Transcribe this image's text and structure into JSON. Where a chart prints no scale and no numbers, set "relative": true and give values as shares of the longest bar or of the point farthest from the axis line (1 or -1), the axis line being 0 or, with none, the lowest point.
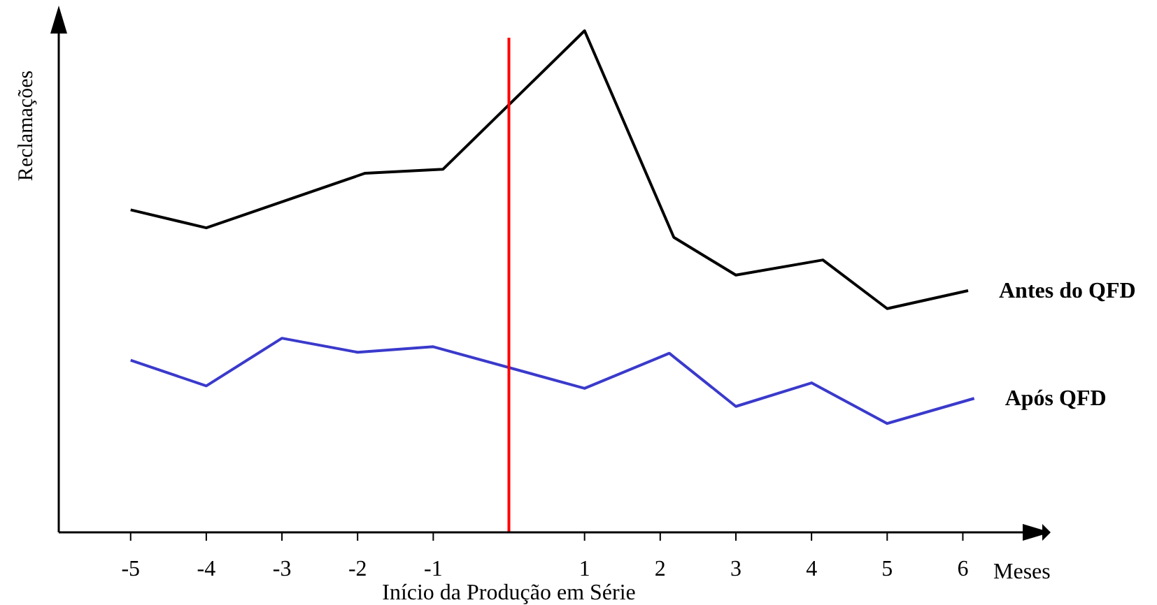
{
  "chart_data": {
    "type": "line",
    "relative": true,
    "ylabel": "Reclamações",
    "xlabel": "Meses",
    "xlim": [
      -5.95,
      7.05
    ],
    "xticks": [
      -5,
      -4,
      -3,
      -2,
      -1,
      1,
      2,
      3,
      4,
      5,
      6
    ],
    "legend": false,
    "grid": false,
    "marker": "none",
    "line_style": "solid",
    "ref_lines": [
      {
        "axis": "x",
        "value": 0,
        "label": "Início da Produção em Série",
        "color": "#ff0000"
      }
    ],
    "series": [
      {
        "name": "Antes do QFD",
        "color": "#000000",
        "x": [
          -5,
          -4,
          -1.9,
          -0.87,
          1,
          2.18,
          3,
          4.15,
          5,
          6.07
        ],
        "values": [
          0.643,
          0.607,
          0.716,
          0.724,
          1,
          0.588,
          0.513,
          0.543,
          0.446,
          0.482
        ]
      },
      {
        "name": "Após QFD",
        "color": "#3a3acc",
        "x": [
          -5,
          -4,
          -3,
          -2,
          -1,
          1,
          2.12,
          3,
          4,
          5,
          6.15
        ],
        "values": [
          0.343,
          0.292,
          0.387,
          0.359,
          0.37,
          0.287,
          0.357,
          0.251,
          0.298,
          0.217,
          0.267
        ]
      }
    ]
  }
}
